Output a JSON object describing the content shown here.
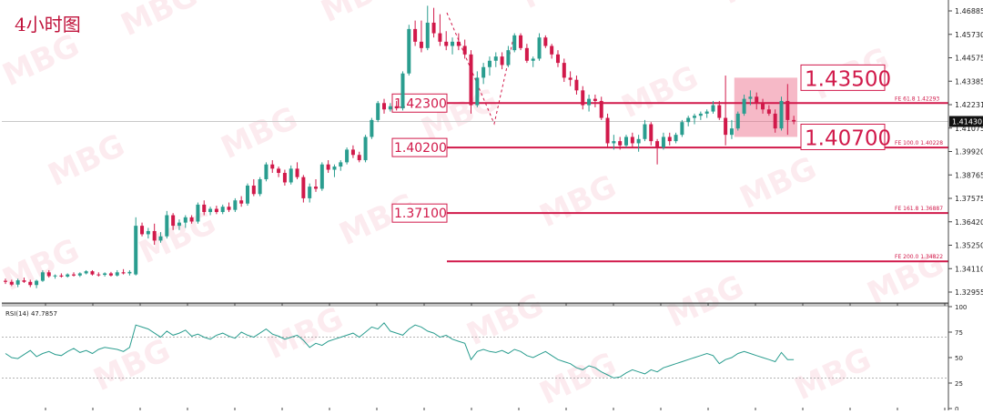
{
  "chart_data": [
    {
      "type": "candlestick",
      "title": "4小时图",
      "ylim": [
        1.3285,
        1.47
      ],
      "yticks": [
        "1.46885",
        "1.45730",
        "1.44575",
        "1.43385",
        "1.42231",
        "1.41075",
        "1.39920",
        "1.38765",
        "1.37575",
        "1.36420",
        "1.35250",
        "1.34110",
        "1.32955"
      ],
      "current_price": "1.41430",
      "colors": {
        "up": "#2a9d8f",
        "down": "#d1194a",
        "level": "#d1194a",
        "zone": "rgba(235,100,130,0.45)"
      },
      "candles": [
        [
          1.339,
          1.34,
          1.3375,
          1.3385
        ],
        [
          1.3385,
          1.3395,
          1.3365,
          1.3372
        ],
        [
          1.3372,
          1.34,
          1.336,
          1.3392
        ],
        [
          1.3392,
          1.3405,
          1.338,
          1.3385
        ],
        [
          1.3385,
          1.3395,
          1.336,
          1.337
        ],
        [
          1.337,
          1.3395,
          1.3355,
          1.339
        ],
        [
          1.339,
          1.344,
          1.3385,
          1.343
        ],
        [
          1.343,
          1.344,
          1.3405,
          1.3412
        ],
        [
          1.3412,
          1.342,
          1.34,
          1.3415
        ],
        [
          1.3415,
          1.3425,
          1.3405,
          1.341
        ],
        [
          1.341,
          1.3425,
          1.3405,
          1.342
        ],
        [
          1.342,
          1.343,
          1.341,
          1.3415
        ],
        [
          1.3415,
          1.343,
          1.3408,
          1.3425
        ],
        [
          1.3425,
          1.344,
          1.342,
          1.3435
        ],
        [
          1.3435,
          1.344,
          1.3415,
          1.342
        ],
        [
          1.342,
          1.343,
          1.341,
          1.3418
        ],
        [
          1.3418,
          1.343,
          1.341,
          1.3425
        ],
        [
          1.3425,
          1.3432,
          1.341,
          1.3415
        ],
        [
          1.3415,
          1.344,
          1.341,
          1.343
        ],
        [
          1.343,
          1.3445,
          1.342,
          1.3425
        ],
        [
          1.3425,
          1.344,
          1.3415,
          1.3432
        ],
        [
          1.342,
          1.369,
          1.3415,
          1.365
        ],
        [
          1.365,
          1.3665,
          1.36,
          1.361
        ],
        [
          1.361,
          1.364,
          1.359,
          1.3625
        ],
        [
          1.3625,
          1.366,
          1.356,
          1.358
        ],
        [
          1.358,
          1.362,
          1.357,
          1.36
        ],
        [
          1.36,
          1.372,
          1.359,
          1.37
        ],
        [
          1.37,
          1.371,
          1.363,
          1.365
        ],
        [
          1.365,
          1.368,
          1.363,
          1.3665
        ],
        [
          1.3665,
          1.37,
          1.364,
          1.369
        ],
        [
          1.369,
          1.37,
          1.366,
          1.367
        ],
        [
          1.367,
          1.376,
          1.366,
          1.375
        ],
        [
          1.375,
          1.377,
          1.37,
          1.3715
        ],
        [
          1.3715,
          1.374,
          1.37,
          1.373
        ],
        [
          1.373,
          1.3745,
          1.3705,
          1.3715
        ],
        [
          1.3715,
          1.375,
          1.3705,
          1.374
        ],
        [
          1.374,
          1.376,
          1.3715,
          1.3725
        ],
        [
          1.3725,
          1.378,
          1.3715,
          1.377
        ],
        [
          1.377,
          1.379,
          1.374,
          1.3755
        ],
        [
          1.3755,
          1.385,
          1.3745,
          1.384
        ],
        [
          1.384,
          1.387,
          1.379,
          1.38
        ],
        [
          1.38,
          1.388,
          1.379,
          1.387
        ],
        [
          1.387,
          1.395,
          1.386,
          1.394
        ],
        [
          1.394,
          1.396,
          1.39,
          1.392
        ],
        [
          1.392,
          1.393,
          1.388,
          1.39
        ],
        [
          1.39,
          1.3915,
          1.384,
          1.3855
        ],
        [
          1.3855,
          1.3935,
          1.3845,
          1.392
        ],
        [
          1.392,
          1.395,
          1.387,
          1.388
        ],
        [
          1.388,
          1.389,
          1.376,
          1.378
        ],
        [
          1.378,
          1.385,
          1.376,
          1.3835
        ],
        [
          1.3835,
          1.387,
          1.381,
          1.3825
        ],
        [
          1.3825,
          1.395,
          1.3815,
          1.394
        ],
        [
          1.394,
          1.396,
          1.39,
          1.3915
        ],
        [
          1.3915,
          1.394,
          1.388,
          1.393
        ],
        [
          1.393,
          1.396,
          1.391,
          1.395
        ],
        [
          1.395,
          1.402,
          1.394,
          1.401
        ],
        [
          1.401,
          1.403,
          1.397,
          1.3985
        ],
        [
          1.3985,
          1.4,
          1.395,
          1.396
        ],
        [
          1.396,
          1.408,
          1.395,
          1.407
        ],
        [
          1.407,
          1.416,
          1.406,
          1.415
        ],
        [
          1.415,
          1.424,
          1.414,
          1.423
        ],
        [
          1.423,
          1.425,
          1.418,
          1.42
        ],
        [
          1.42,
          1.423,
          1.419,
          1.4215
        ],
        [
          1.4215,
          1.424,
          1.4195,
          1.4205
        ],
        [
          1.4205,
          1.438,
          1.4195,
          1.437
        ],
        [
          1.437,
          1.46,
          1.436,
          1.458
        ],
        [
          1.458,
          1.462,
          1.45,
          1.452
        ],
        [
          1.452,
          1.462,
          1.447,
          1.449
        ],
        [
          1.449,
          1.469,
          1.448,
          1.461
        ],
        [
          1.461,
          1.468,
          1.454,
          1.456
        ],
        [
          1.456,
          1.465,
          1.45,
          1.452
        ],
        [
          1.452,
          1.457,
          1.448,
          1.45
        ],
        [
          1.45,
          1.454,
          1.446,
          1.452
        ],
        [
          1.452,
          1.456,
          1.448,
          1.45
        ],
        [
          1.45,
          1.453,
          1.444,
          1.446
        ],
        [
          1.446,
          1.448,
          1.418,
          1.422
        ],
        [
          1.422,
          1.438,
          1.421,
          1.435
        ],
        [
          1.435,
          1.442,
          1.432,
          1.44
        ],
        [
          1.44,
          1.445,
          1.436,
          1.443
        ],
        [
          1.443,
          1.447,
          1.44,
          1.445
        ],
        [
          1.445,
          1.447,
          1.439,
          1.441
        ],
        [
          1.441,
          1.45,
          1.44,
          1.448
        ],
        [
          1.448,
          1.456,
          1.447,
          1.455
        ],
        [
          1.455,
          1.456,
          1.448,
          1.449
        ],
        [
          1.449,
          1.451,
          1.442,
          1.443
        ],
        [
          1.443,
          1.445,
          1.44,
          1.444
        ],
        [
          1.444,
          1.456,
          1.443,
          1.454
        ],
        [
          1.454,
          1.455,
          1.449,
          1.45
        ],
        [
          1.45,
          1.451,
          1.444,
          1.446
        ],
        [
          1.446,
          1.448,
          1.44,
          1.442
        ],
        [
          1.442,
          1.444,
          1.433,
          1.435
        ],
        [
          1.435,
          1.438,
          1.431,
          1.434
        ],
        [
          1.434,
          1.436,
          1.427,
          1.429
        ],
        [
          1.429,
          1.431,
          1.42,
          1.422
        ],
        [
          1.422,
          1.427,
          1.419,
          1.425
        ],
        [
          1.425,
          1.427,
          1.421,
          1.424
        ],
        [
          1.424,
          1.426,
          1.415,
          1.416
        ],
        [
          1.416,
          1.418,
          1.402,
          1.404
        ],
        [
          1.404,
          1.408,
          1.401,
          1.405
        ],
        [
          1.405,
          1.407,
          1.401,
          1.403
        ],
        [
          1.403,
          1.408,
          1.402,
          1.407
        ],
        [
          1.407,
          1.409,
          1.402,
          1.404
        ],
        [
          1.404,
          1.408,
          1.4,
          1.406
        ],
        [
          1.406,
          1.415,
          1.405,
          1.413
        ],
        [
          1.413,
          1.414,
          1.403,
          1.405
        ],
        [
          1.405,
          1.406,
          1.394,
          1.402
        ],
        [
          1.402,
          1.409,
          1.401,
          1.407
        ],
        [
          1.407,
          1.409,
          1.403,
          1.405
        ],
        [
          1.405,
          1.409,
          1.404,
          1.408
        ],
        [
          1.408,
          1.415,
          1.407,
          1.414
        ],
        [
          1.414,
          1.417,
          1.412,
          1.416
        ],
        [
          1.416,
          1.418,
          1.413,
          1.417
        ],
        [
          1.417,
          1.419,
          1.415,
          1.418
        ],
        [
          1.418,
          1.42,
          1.416,
          1.419
        ],
        [
          1.419,
          1.424,
          1.418,
          1.422
        ],
        [
          1.422,
          1.424,
          1.415,
          1.416
        ],
        [
          1.416,
          1.436,
          1.403,
          1.408
        ],
        [
          1.408,
          1.415,
          1.406,
          1.411
        ],
        [
          1.411,
          1.419,
          1.41,
          1.418
        ],
        [
          1.418,
          1.427,
          1.417,
          1.425
        ],
        [
          1.425,
          1.429,
          1.422,
          1.426
        ],
        [
          1.426,
          1.428,
          1.42,
          1.423
        ],
        [
          1.423,
          1.425,
          1.418,
          1.42
        ],
        [
          1.42,
          1.422,
          1.417,
          1.418
        ],
        [
          1.418,
          1.42,
          1.409,
          1.411
        ],
        [
          1.411,
          1.426,
          1.41,
          1.424
        ],
        [
          1.424,
          1.432,
          1.408,
          1.415
        ],
        [
          1.415,
          1.417,
          1.413,
          1.4143
        ]
      ],
      "levels": [
        {
          "price": 1.423,
          "label": "1.42300",
          "fe": "FE 61.8  1.42293"
        },
        {
          "price": 1.402,
          "label": "1.40200",
          "fe": "FE 100.0  1.40228"
        },
        {
          "price": 1.371,
          "label": "1.37100",
          "fe": "FE 161.8  1.36887"
        },
        {
          "price": 1.3482,
          "label": "",
          "fe": "FE 200.0  1.34822"
        }
      ],
      "zone": {
        "top": 1.435,
        "bottom": 1.407,
        "top_label": "1.43500",
        "bottom_label": "1.40700"
      },
      "watermark": "MBG"
    },
    {
      "type": "line",
      "title": "RSI(14) 47.7857",
      "ylim": [
        0,
        100
      ],
      "yticks": [
        "100",
        "75",
        "50",
        "25",
        "0"
      ],
      "guide_levels": [
        30,
        70
      ],
      "values": [
        54,
        50,
        49,
        53,
        57,
        51,
        54,
        56,
        53,
        52,
        56,
        59,
        55,
        57,
        54,
        58,
        60,
        59,
        58,
        56,
        60,
        82,
        80,
        78,
        74,
        70,
        76,
        72,
        74,
        77,
        71,
        73,
        70,
        68,
        72,
        74,
        71,
        69,
        75,
        72,
        70,
        74,
        78,
        73,
        71,
        68,
        70,
        72,
        67,
        60,
        64,
        62,
        66,
        68,
        70,
        72,
        74,
        70,
        75,
        80,
        78,
        84,
        76,
        74,
        72,
        78,
        82,
        80,
        76,
        74,
        70,
        72,
        68,
        66,
        64,
        48,
        56,
        58,
        56,
        55,
        57,
        54,
        58,
        56,
        52,
        50,
        53,
        56,
        52,
        48,
        46,
        44,
        40,
        38,
        42,
        40,
        36,
        33,
        30,
        31,
        35,
        38,
        36,
        34,
        38,
        36,
        40,
        42,
        44,
        46,
        48,
        50,
        52,
        54,
        52,
        44,
        48,
        50,
        54,
        56,
        54,
        52,
        50,
        48,
        46,
        55,
        48,
        48
      ]
    }
  ]
}
